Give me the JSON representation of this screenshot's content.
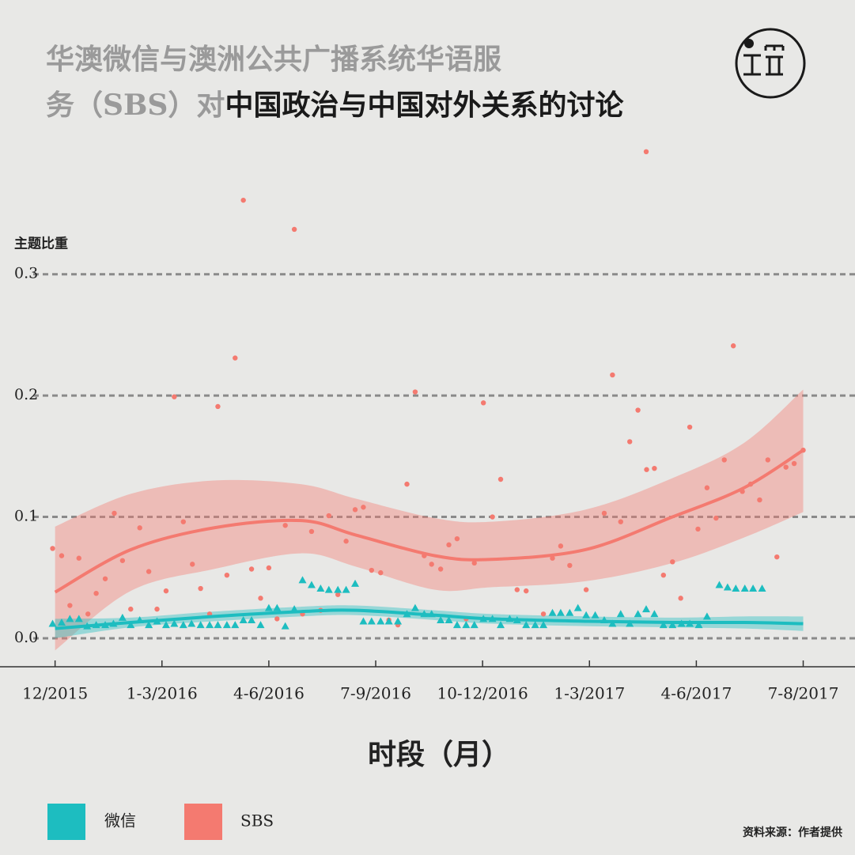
{
  "chart_data": {
    "type": "scatter",
    "title": [
      "华澳微信与澳洲公共广播系统华语服",
      "务（SBS）对",
      "中国政治与中国对外关系的讨论"
    ],
    "y_label": "主题比重",
    "x_label": "时段（月）",
    "source": "资料来源：作者提供",
    "xlim": [
      -6.7,
      97.3
    ],
    "ylim": [
      -0.0235,
      0.41
    ],
    "xticks": [
      {
        "value": 0,
        "label": "12/2015"
      },
      {
        "value": 13,
        "label": "1-3/2016"
      },
      {
        "value": 26,
        "label": "4-6/2016"
      },
      {
        "value": 39,
        "label": "7-9/2016"
      },
      {
        "value": 52,
        "label": "10-12/2016"
      },
      {
        "value": 65,
        "label": "1-3/2017"
      },
      {
        "value": 78,
        "label": "4-6/2017"
      },
      {
        "value": 91,
        "label": "7-8/2017"
      }
    ],
    "yticks": [
      {
        "value": 0,
        "label": "0.0"
      },
      0.1,
      0.2,
      0.3
    ],
    "grid": true,
    "series": [
      {
        "name": "微信",
        "color": "#1dbdc0",
        "marker": "triangle",
        "x": [
          -0.3,
          0.8,
          1.8,
          2.9,
          3.9,
          5.0,
          6.1,
          7.1,
          8.2,
          9.2,
          10.3,
          11.4,
          12.4,
          13.5,
          14.5,
          15.6,
          16.6,
          17.7,
          18.8,
          19.8,
          20.9,
          21.9,
          22.9,
          23.9,
          25.0,
          26.0,
          27.0,
          28.0,
          29.1,
          30.1,
          31.2,
          32.3,
          33.3,
          34.4,
          35.4,
          36.5,
          37.5,
          38.5,
          39.6,
          40.6,
          41.7,
          42.8,
          43.8,
          44.9,
          45.8,
          46.9,
          47.9,
          48.9,
          50.0,
          51.0,
          52.1,
          53.2,
          54.2,
          55.3,
          56.2,
          57.3,
          58.4,
          59.4,
          60.5,
          61.5,
          62.6,
          63.6,
          64.6,
          65.7,
          66.8,
          67.8,
          68.8,
          69.9,
          70.9,
          71.9,
          72.9,
          74.0,
          75.1,
          76.2,
          77.2,
          78.3,
          79.3,
          80.8,
          81.8,
          82.8,
          83.9,
          84.9,
          86.0
        ],
        "values": [
          0.012,
          0.013,
          0.016,
          0.016,
          0.01,
          0.011,
          0.011,
          0.012,
          0.017,
          0.011,
          0.015,
          0.011,
          0.014,
          0.011,
          0.012,
          0.011,
          0.012,
          0.011,
          0.011,
          0.011,
          0.011,
          0.011,
          0.015,
          0.015,
          0.011,
          0.025,
          0.025,
          0.01,
          0.024,
          0.048,
          0.044,
          0.041,
          0.04,
          0.04,
          0.04,
          0.045,
          0.014,
          0.014,
          0.014,
          0.014,
          0.014,
          0.02,
          0.025,
          0.02,
          0.02,
          0.015,
          0.015,
          0.011,
          0.011,
          0.011,
          0.016,
          0.016,
          0.011,
          0.016,
          0.015,
          0.011,
          0.011,
          0.011,
          0.021,
          0.021,
          0.021,
          0.025,
          0.019,
          0.019,
          0.015,
          0.012,
          0.02,
          0.012,
          0.02,
          0.024,
          0.02,
          0.011,
          0.011,
          0.012,
          0.012,
          0.011,
          0.018,
          0.044,
          0.042,
          0.041,
          0.041,
          0.041,
          0.041
        ],
        "trend": {
          "x": [
            0,
            9.2,
            19.3,
            29.9,
            36.6,
            46.2,
            53.0,
            64.5,
            75.1,
            83.8,
            91.0
          ],
          "values": [
            0.008,
            0.013,
            0.018,
            0.022,
            0.023,
            0.019,
            0.016,
            0.014,
            0.013,
            0.013,
            0.012
          ],
          "lower": [
            0.0,
            0.009,
            0.014,
            0.018,
            0.019,
            0.015,
            0.012,
            0.01,
            0.009,
            0.008,
            0.006
          ],
          "upper": [
            0.016,
            0.017,
            0.022,
            0.026,
            0.027,
            0.023,
            0.02,
            0.018,
            0.017,
            0.018,
            0.018
          ]
        }
      },
      {
        "name": "SBS",
        "color": "#f47a70",
        "marker": "circle",
        "x": [
          -0.3,
          0.8,
          1.8,
          2.9,
          4.0,
          5.0,
          6.1,
          7.2,
          8.2,
          9.2,
          10.3,
          11.4,
          12.4,
          13.5,
          14.5,
          15.6,
          16.7,
          17.7,
          18.8,
          19.8,
          20.9,
          21.9,
          22.9,
          23.9,
          25.0,
          26.0,
          27.0,
          28.0,
          29.1,
          30.1,
          31.2,
          32.3,
          33.3,
          34.4,
          35.4,
          36.5,
          37.5,
          38.5,
          39.6,
          40.6,
          41.7,
          42.8,
          43.8,
          44.9,
          45.8,
          46.9,
          47.9,
          48.9,
          50.0,
          51.0,
          52.1,
          53.2,
          54.2,
          56.2,
          57.3,
          59.4,
          60.5,
          61.5,
          62.6,
          64.6,
          66.8,
          67.8,
          68.8,
          69.9,
          70.9,
          71.9,
          71.95,
          72.9,
          74.0,
          75.1,
          76.1,
          77.2,
          78.2,
          79.3,
          80.4,
          81.4,
          82.5,
          83.6,
          84.6,
          85.7,
          86.7,
          87.8,
          88.9,
          89.9,
          91.0
        ],
        "values": [
          0.074,
          0.068,
          0.027,
          0.066,
          0.02,
          0.037,
          0.049,
          0.103,
          0.064,
          0.024,
          0.091,
          0.055,
          0.024,
          0.039,
          0.199,
          0.096,
          0.061,
          0.041,
          0.02,
          0.191,
          0.052,
          0.231,
          0.361,
          0.057,
          0.033,
          0.058,
          0.016,
          0.093,
          0.337,
          0.02,
          0.088,
          0.023,
          0.101,
          0.036,
          0.08,
          0.106,
          0.108,
          0.056,
          0.054,
          0.015,
          0.011,
          0.127,
          0.203,
          0.068,
          0.061,
          0.057,
          0.077,
          0.082,
          0.016,
          0.062,
          0.194,
          0.1,
          0.131,
          0.04,
          0.039,
          0.02,
          0.066,
          0.076,
          0.06,
          0.04,
          0.103,
          0.217,
          0.096,
          0.162,
          0.188,
          0.401,
          0.139,
          0.14,
          0.052,
          0.063,
          0.033,
          0.174,
          0.09,
          0.124,
          0.099,
          0.147,
          0.241,
          0.121,
          0.127,
          0.114,
          0.147,
          0.067,
          0.141,
          0.144,
          0.155
        ],
        "trend": {
          "x": [
            0,
            9.2,
            19.3,
            29.9,
            36.6,
            46.2,
            53.0,
            64.5,
            75.1,
            83.8,
            91.0
          ],
          "values": [
            0.038,
            0.073,
            0.091,
            0.097,
            0.085,
            0.068,
            0.065,
            0.073,
            0.1,
            0.124,
            0.155
          ],
          "lower": [
            -0.01,
            0.039,
            0.057,
            0.07,
            0.059,
            0.04,
            0.042,
            0.047,
            0.062,
            0.083,
            0.104
          ],
          "upper": [
            0.092,
            0.119,
            0.13,
            0.127,
            0.115,
            0.099,
            0.096,
            0.106,
            0.132,
            0.161,
            0.205
          ]
        }
      }
    ]
  }
}
